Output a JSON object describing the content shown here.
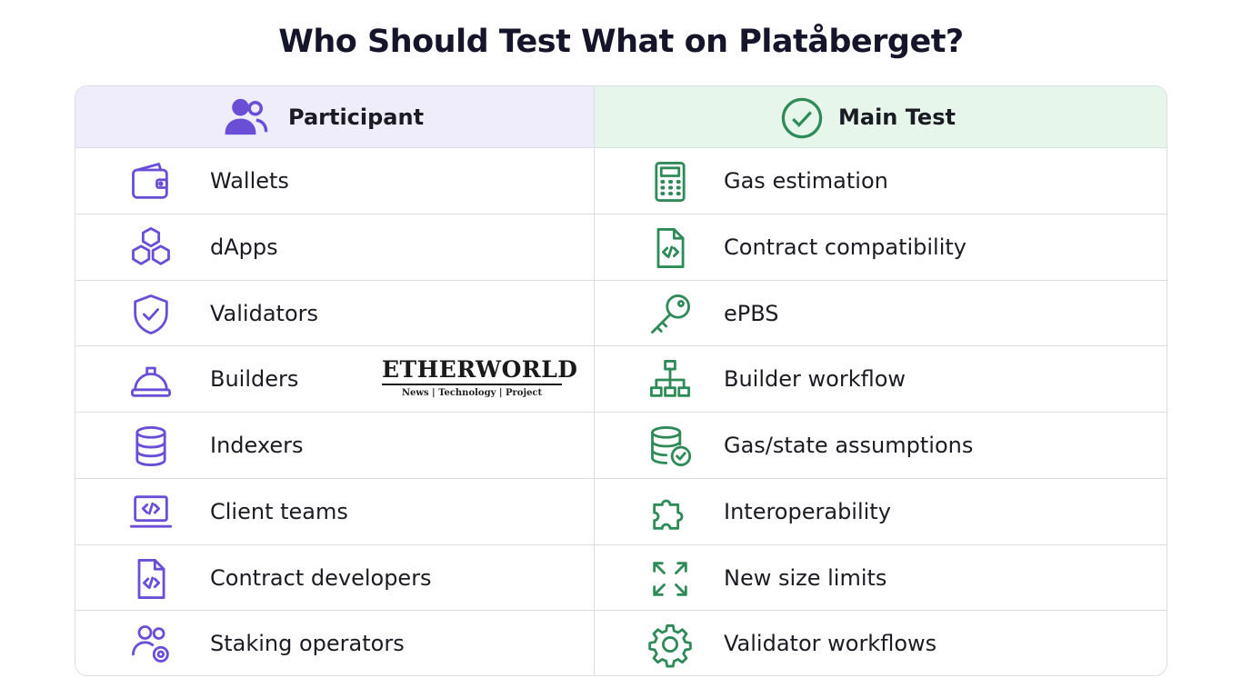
{
  "title": "Who Should Test What on Platåberget?",
  "table": {
    "header": [
      "Participant",
      "Main Test"
    ],
    "rows": [
      [
        "Wallets",
        "Gas estimation"
      ],
      [
        "dApps",
        "Contract compatibility"
      ],
      [
        "Validators",
        "ePBS"
      ],
      [
        "Builders",
        "Builder workflow"
      ],
      [
        "Indexers",
        "Gas/state assumptions"
      ],
      [
        "Client teams",
        "Interoperability"
      ],
      [
        "Contract developers",
        "New size limits"
      ],
      [
        "Staking operators",
        "Validator workflows"
      ]
    ]
  },
  "watermark": {
    "name": "ETHERWORLD",
    "tagline": "News | Technology | Project"
  }
}
